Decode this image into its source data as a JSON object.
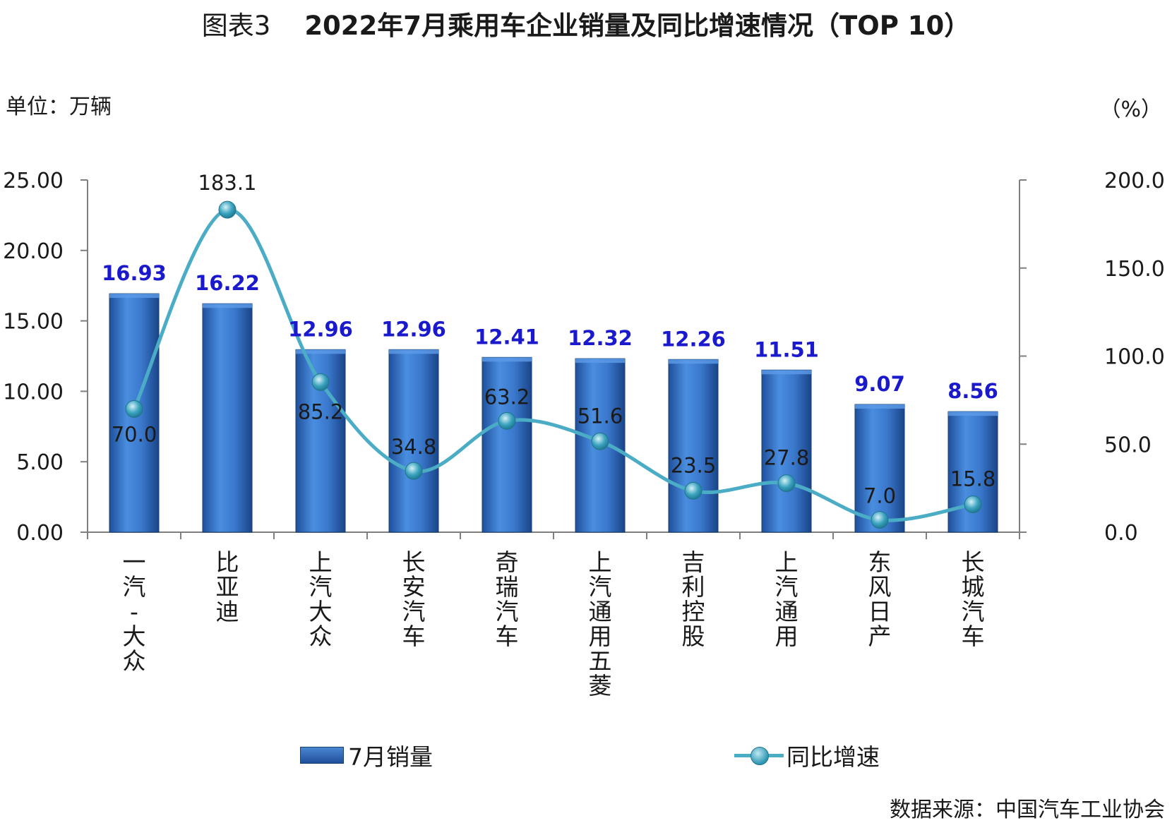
{
  "header": {
    "figure_label": "图表3",
    "title": "2022年7月乘用车企业销量及同比增速情况（TOP 10）",
    "unit_left": "单位：万辆",
    "unit_right": "（%）"
  },
  "source": "数据来源：中国汽车工业协会",
  "colors": {
    "bar": "#2e6cc0",
    "bar_label": "#1a1acc",
    "line": "#4bacc6",
    "axis": "#7f7f7f"
  },
  "chart_data": {
    "type": "bar",
    "categories": [
      "一汽-大众",
      "比亚迪",
      "上汽大众",
      "长安汽车",
      "奇瑞汽车",
      "上汽通用五菱",
      "吉利控股",
      "上汽通用",
      "东风日产",
      "长城汽车"
    ],
    "series": [
      {
        "name": "7月销量",
        "type": "bar",
        "axis": "left",
        "values": [
          16.93,
          16.22,
          12.96,
          12.96,
          12.41,
          12.32,
          12.26,
          11.51,
          9.07,
          8.56
        ]
      },
      {
        "name": "同比增速",
        "type": "line",
        "axis": "right",
        "values": [
          70.0,
          183.1,
          85.2,
          34.8,
          63.2,
          51.6,
          23.5,
          27.8,
          7.0,
          15.8
        ]
      }
    ],
    "y_left": {
      "ylim": [
        0,
        25
      ],
      "ticks": [
        "0.00",
        "5.00",
        "10.00",
        "15.00",
        "20.00",
        "25.00"
      ]
    },
    "y_right": {
      "ylim": [
        0,
        200
      ],
      "ticks": [
        "0.0",
        "50.0",
        "100.0",
        "150.0",
        "200.0"
      ]
    },
    "legend": "bottom",
    "grid": false
  }
}
